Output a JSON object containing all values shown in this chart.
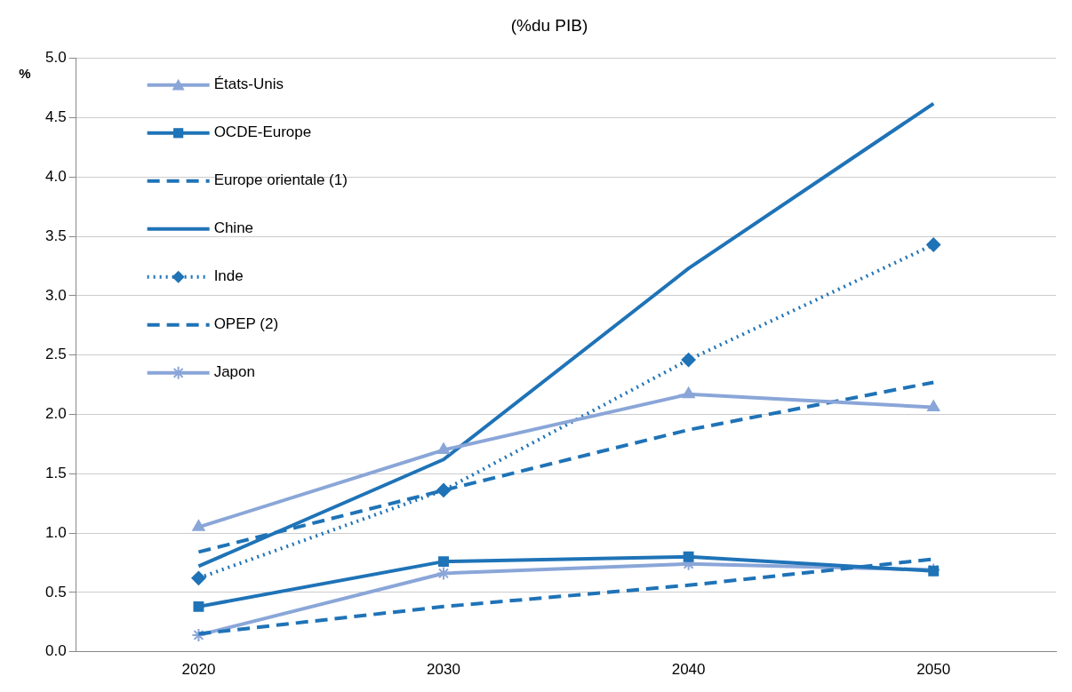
{
  "chart_data": {
    "type": "line",
    "title": "(%du PIB)",
    "ylabel": "%",
    "categories": [
      "2020",
      "2030",
      "2040",
      "2050"
    ],
    "series": [
      {
        "name": "États-Unis",
        "color": "#8aa6d8",
        "marker": "triangle",
        "line_style": "solid",
        "values": [
          1.05,
          1.7,
          2.17,
          2.06
        ]
      },
      {
        "name": "OCDE-Europe",
        "color": "#1f73b7",
        "marker": "square",
        "line_style": "solid",
        "values": [
          0.38,
          0.76,
          0.8,
          0.68
        ]
      },
      {
        "name": "Europe orientale (1)",
        "color": "#1f73b7",
        "marker": "none",
        "line_style": "dashed",
        "values": [
          0.84,
          1.36,
          1.87,
          2.27
        ]
      },
      {
        "name": "Chine",
        "color": "#1f73b7",
        "marker": "none",
        "line_style": "solid",
        "values": [
          0.72,
          1.62,
          3.23,
          4.62
        ]
      },
      {
        "name": "Inde",
        "color": "#1f73b7",
        "marker": "diamond",
        "line_style": "dotted",
        "values": [
          0.62,
          1.36,
          2.46,
          3.43
        ]
      },
      {
        "name": "OPEP (2)",
        "color": "#1f73b7",
        "marker": "none",
        "line_style": "dashed",
        "values": [
          0.15,
          0.38,
          0.56,
          0.78
        ]
      },
      {
        "name": "Japon",
        "color": "#8aa6d8",
        "marker": "cross",
        "line_style": "solid",
        "values": [
          0.14,
          0.66,
          0.74,
          0.69
        ]
      }
    ],
    "ylim": [
      0,
      5
    ],
    "yticks": [
      {
        "value": 0,
        "label": "0.0"
      },
      {
        "value": 0.5,
        "label": "0.5"
      },
      {
        "value": 1,
        "label": "1.0"
      },
      {
        "value": 1.5,
        "label": "1.5"
      },
      {
        "value": 2,
        "label": "2.0"
      },
      {
        "value": 2.5,
        "label": "2.5"
      },
      {
        "value": 3,
        "label": "3.0"
      },
      {
        "value": 3.5,
        "label": "3.5"
      },
      {
        "value": 4,
        "label": "4.0"
      },
      {
        "value": 4.5,
        "label": "4.5"
      },
      {
        "value": 5,
        "label": "5.0"
      }
    ],
    "grid": "y",
    "legend": "top left"
  }
}
